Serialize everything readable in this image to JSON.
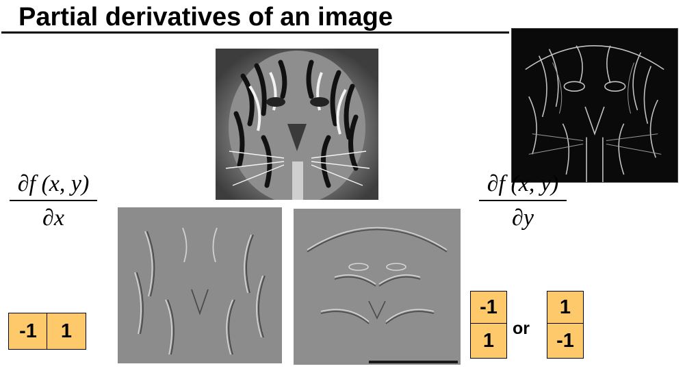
{
  "slide": {
    "title": "Partial derivatives of an image"
  },
  "derivative_x": {
    "numerator": "∂f (x, y)",
    "denominator": "∂x"
  },
  "derivative_y": {
    "numerator": "∂f (x, y)",
    "denominator": "∂y"
  },
  "kernel_x": {
    "cells": [
      "-1",
      "1"
    ]
  },
  "kernel_y": {
    "option_a": [
      "-1",
      "1"
    ],
    "separator": "or",
    "option_b": [
      "1",
      "-1"
    ]
  },
  "images": [
    {
      "name": "tiger-original-image",
      "icon": "tiger-photo"
    },
    {
      "name": "gradient-magnitude-image",
      "icon": "edge-map"
    },
    {
      "name": "x-derivative-image",
      "icon": "x-gradient-embossed"
    },
    {
      "name": "y-derivative-image",
      "icon": "y-gradient-embossed"
    }
  ],
  "colors": {
    "kernel_fill": "#fdc96a",
    "derivative_background": "#8c8c8c",
    "edge_background": "#0a0a0a"
  }
}
